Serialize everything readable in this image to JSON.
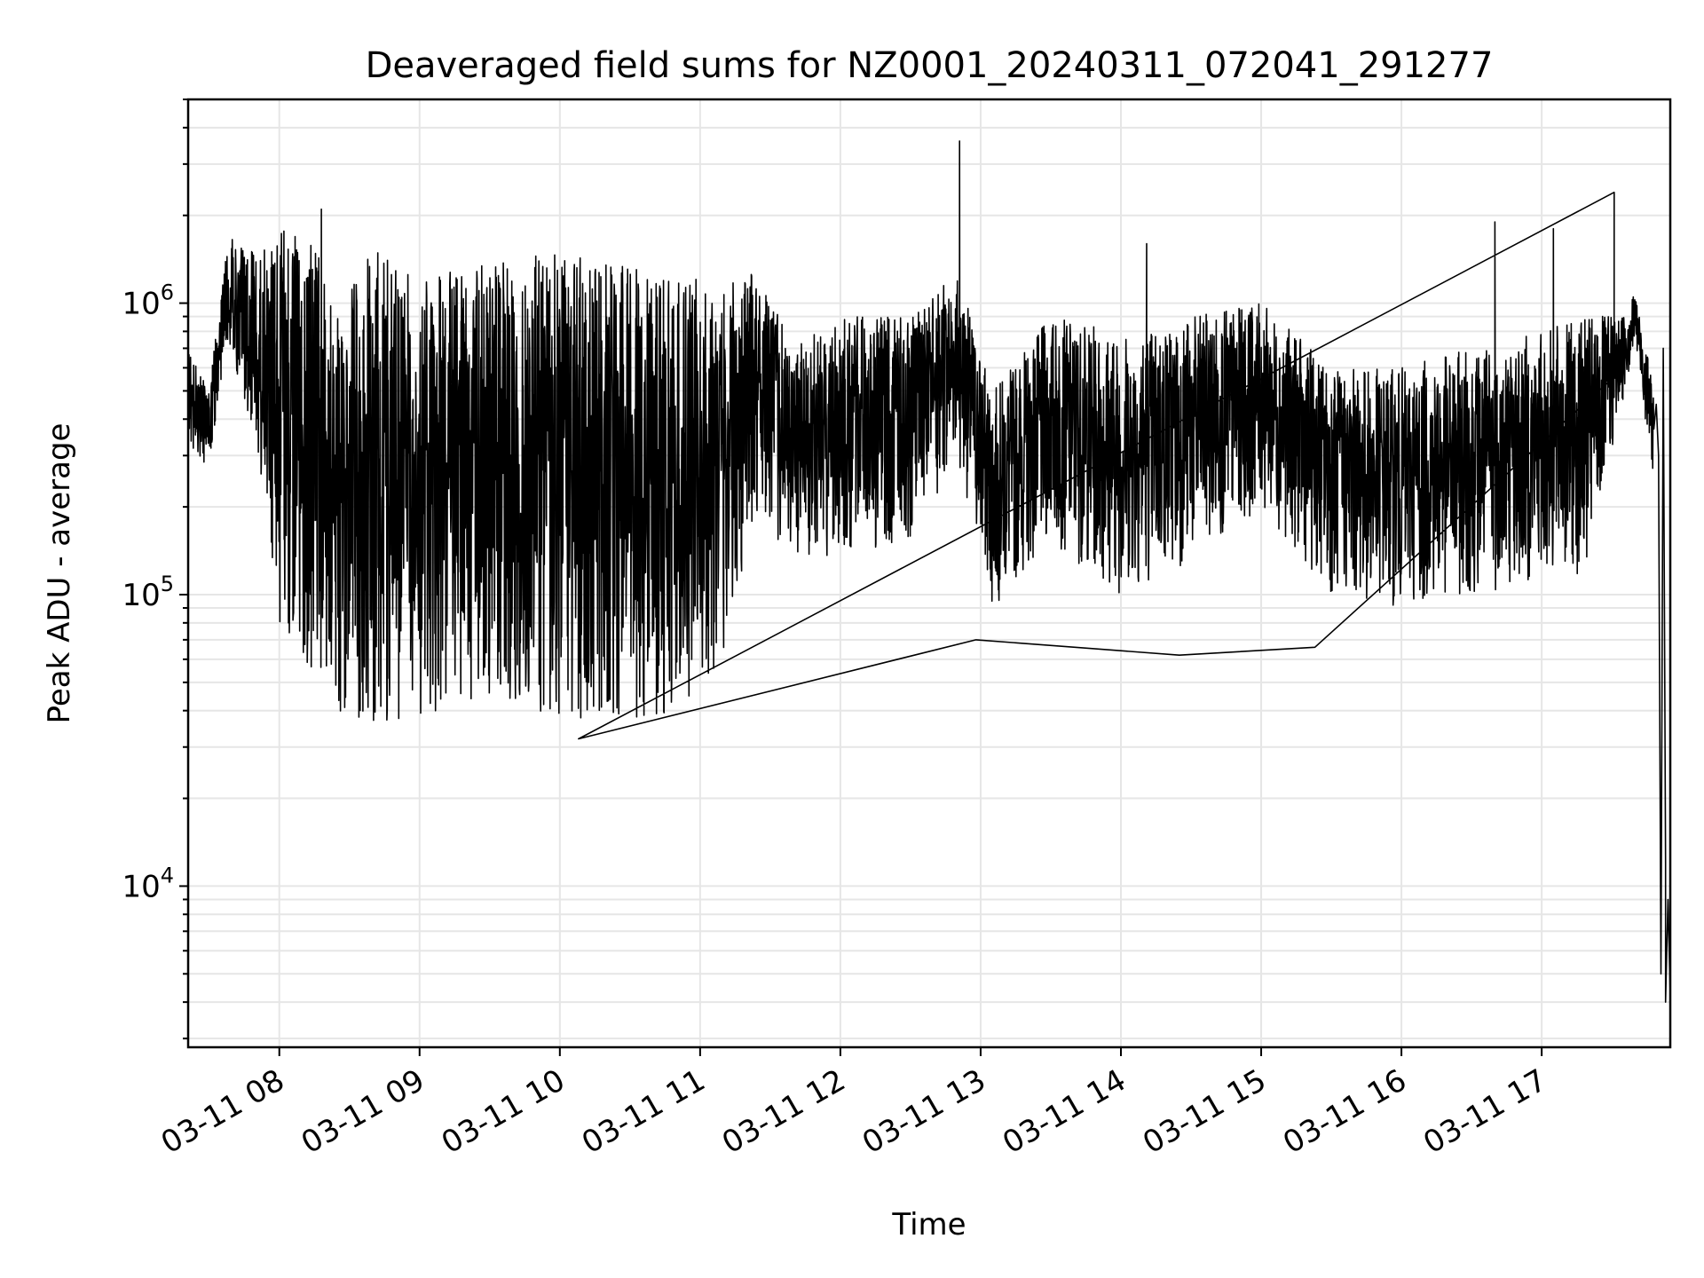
{
  "chart_data": {
    "type": "line",
    "title": "Deaveraged field sums for NZ0001_20240311_072041_291277",
    "xlabel": "Time",
    "ylabel": "Peak ADU - average",
    "yscale": "log",
    "xlim": [
      "2024-03-11 07:21",
      "2024-03-11 17:55"
    ],
    "ylim": [
      2800,
      5000000
    ],
    "grid": true,
    "x_ticks": [
      "03-11 08",
      "03-11 09",
      "03-11 10",
      "03-11 11",
      "03-11 12",
      "03-11 13",
      "03-11 14",
      "03-11 15",
      "03-11 16",
      "03-11 17"
    ],
    "y_ticks": [
      {
        "value": 10000,
        "base": "10",
        "exp": "4"
      },
      {
        "value": 100000,
        "base": "10",
        "exp": "5"
      },
      {
        "value": 1000000,
        "base": "10",
        "exp": "6"
      }
    ],
    "series": [
      {
        "color": "#000000",
        "envelope": [
          {
            "x": "2024-03-11 07:21",
            "low": 300000,
            "high": 700000
          },
          {
            "x": "2024-03-11 07:30",
            "low": 280000,
            "high": 500000
          },
          {
            "x": "2024-03-11 07:38",
            "low": 700000,
            "high": 1700000
          },
          {
            "x": "2024-03-11 07:50",
            "low": 300000,
            "high": 1500000
          },
          {
            "x": "2024-03-11 08:00",
            "low": 80000,
            "high": 1800000
          },
          {
            "x": "2024-03-11 08:15",
            "low": 50000,
            "high": 1600000
          },
          {
            "x": "2024-03-11 08:25",
            "low": 40000,
            "high": 900000
          },
          {
            "x": "2024-03-11 08:40",
            "low": 35000,
            "high": 1600000
          },
          {
            "x": "2024-03-11 09:00",
            "low": 38000,
            "high": 1200000
          },
          {
            "x": "2024-03-11 09:30",
            "low": 40000,
            "high": 1400000
          },
          {
            "x": "2024-03-11 10:00",
            "low": 38000,
            "high": 1500000
          },
          {
            "x": "2024-03-11 10:30",
            "low": 36000,
            "high": 1400000
          },
          {
            "x": "2024-03-11 10:53",
            "low": 40000,
            "high": 1300000
          },
          {
            "x": "2024-03-11 11:10",
            "low": 60000,
            "high": 1200000
          },
          {
            "x": "2024-03-11 11:25",
            "low": 200000,
            "high": 1300000
          },
          {
            "x": "2024-03-11 11:40",
            "low": 120000,
            "high": 700000
          },
          {
            "x": "2024-03-11 12:00",
            "low": 140000,
            "high": 900000
          },
          {
            "x": "2024-03-11 12:30",
            "low": 150000,
            "high": 900000
          },
          {
            "x": "2024-03-11 12:50",
            "low": 300000,
            "high": 1300000
          },
          {
            "x": "2024-03-11 13:05",
            "low": 90000,
            "high": 500000
          },
          {
            "x": "2024-03-11 13:30",
            "low": 150000,
            "high": 900000
          },
          {
            "x": "2024-03-11 14:00",
            "low": 100000,
            "high": 800000
          },
          {
            "x": "2024-03-11 14:30",
            "low": 130000,
            "high": 900000
          },
          {
            "x": "2024-03-11 15:00",
            "low": 200000,
            "high": 1000000
          },
          {
            "x": "2024-03-11 15:30",
            "low": 100000,
            "high": 600000
          },
          {
            "x": "2024-03-11 16:00",
            "low": 90000,
            "high": 600000
          },
          {
            "x": "2024-03-11 16:30",
            "low": 100000,
            "high": 700000
          },
          {
            "x": "2024-03-11 17:00",
            "low": 110000,
            "high": 800000
          },
          {
            "x": "2024-03-11 17:20",
            "low": 120000,
            "high": 900000
          },
          {
            "x": "2024-03-11 17:33",
            "low": 400000,
            "high": 900000
          },
          {
            "x": "2024-03-11 17:40",
            "low": 700000,
            "high": 1100000
          },
          {
            "x": "2024-03-11 17:48",
            "low": 250000,
            "high": 500000
          }
        ],
        "spikes": [
          {
            "x": "2024-03-11 08:18",
            "y": 2100000
          },
          {
            "x": "2024-03-11 12:51",
            "y": 3600000
          },
          {
            "x": "2024-03-11 14:11",
            "y": 1600000
          },
          {
            "x": "2024-03-11 16:40",
            "y": 1900000
          },
          {
            "x": "2024-03-11 17:05",
            "y": 1800000
          },
          {
            "x": "2024-03-11 17:31",
            "y": 2400000
          },
          {
            "x": "2024-03-11 10:08",
            "y": 32000
          },
          {
            "x": "2024-03-11 12:58",
            "y": 70000
          },
          {
            "x": "2024-03-11 14:25",
            "y": 62000
          },
          {
            "x": "2024-03-11 15:23",
            "y": 66000
          }
        ],
        "tail": [
          {
            "x": "2024-03-11 17:49",
            "y": 450000
          },
          {
            "x": "2024-03-11 17:50",
            "y": 300000
          },
          {
            "x": "2024-03-11 17:51",
            "y": 5000
          },
          {
            "x": "2024-03-11 17:52",
            "y": 700000
          },
          {
            "x": "2024-03-11 17:53",
            "y": 12000
          },
          {
            "x": "2024-03-11 17:53",
            "y": 4000
          },
          {
            "x": "2024-03-11 17:54",
            "y": 9000
          },
          {
            "x": "2024-03-11 17:55",
            "y": 4200
          }
        ]
      }
    ]
  }
}
